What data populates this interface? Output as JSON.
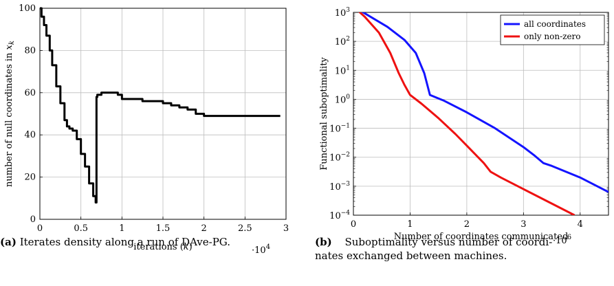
{
  "chart_data": [
    {
      "type": "line",
      "xlabel": "iterations (k)",
      "x_multiplier": "·10^4",
      "ylabel": "number of null coordinates in x_k",
      "xlim": [
        0,
        3
      ],
      "ylim": [
        0,
        100
      ],
      "xticks": [
        "0",
        "0.5",
        "1",
        "1.5",
        "2",
        "2.5",
        "3"
      ],
      "yticks": [
        "0",
        "20",
        "40",
        "60",
        "80",
        "100"
      ],
      "grid": true,
      "series": [
        {
          "color": "#000000",
          "x": [
            0,
            0.02,
            0.05,
            0.08,
            0.12,
            0.15,
            0.2,
            0.25,
            0.3,
            0.33,
            0.36,
            0.4,
            0.45,
            0.5,
            0.55,
            0.6,
            0.65,
            0.68,
            0.69,
            0.7,
            0.72,
            0.75,
            0.8,
            0.85,
            0.95,
            1.0,
            1.25,
            1.5,
            1.6,
            1.7,
            1.8,
            1.9,
            2.0,
            2.5,
            2.93
          ],
          "y": [
            100,
            96,
            92,
            87,
            80,
            73,
            63,
            55,
            47,
            44,
            43,
            42,
            38,
            31,
            25,
            17,
            11,
            8,
            58,
            59,
            59,
            60,
            60,
            60,
            59,
            57,
            56,
            55,
            54,
            53,
            52,
            50,
            49,
            49,
            49
          ]
        }
      ]
    },
    {
      "type": "line",
      "xlabel": "Number of coordinates communicated",
      "x_multiplier": "·10^6",
      "ylabel": "Functional suboptimality",
      "xlim": [
        0,
        4.5
      ],
      "ylim_log10": [
        -4,
        3
      ],
      "yscale": "log",
      "xticks": [
        "0",
        "1",
        "2",
        "3",
        "4"
      ],
      "yticks_exp": [
        "3",
        "2",
        "1",
        "0",
        "−1",
        "−2",
        "−3",
        "−4"
      ],
      "grid": true,
      "legend_position": "top-right",
      "series": [
        {
          "name": "all coordinates",
          "color": "#1414ff",
          "x": [
            0,
            0.3,
            0.6,
            0.9,
            1.1,
            1.25,
            1.35,
            1.6,
            2.0,
            2.5,
            3.0,
            3.2,
            3.35,
            3.5,
            4.0,
            4.5
          ],
          "log10_y": [
            3.2,
            2.85,
            2.5,
            2.05,
            1.6,
            0.9,
            0.15,
            -0.05,
            -0.45,
            -1.0,
            -1.65,
            -1.95,
            -2.2,
            -2.3,
            -2.7,
            -3.2
          ]
        },
        {
          "name": "only non-zero",
          "color": "#ee1111",
          "x": [
            0,
            0.2,
            0.45,
            0.65,
            0.8,
            0.9,
            1.0,
            1.2,
            1.5,
            1.8,
            2.0,
            2.3,
            2.42,
            2.6,
            3.0,
            3.5,
            3.9
          ],
          "log10_y": [
            3.2,
            2.85,
            2.3,
            1.6,
            0.9,
            0.5,
            0.15,
            -0.15,
            -0.65,
            -1.2,
            -1.6,
            -2.2,
            -2.5,
            -2.7,
            -3.1,
            -3.6,
            -4.0
          ]
        }
      ]
    }
  ],
  "captions": [
    {
      "label": "(a)",
      "text": "Iterates density along a run of DAve-PG."
    },
    {
      "label": "(b)",
      "text_line1": "Suboptimality versus number of coordi-",
      "text_line2": "nates exchanged between machines."
    }
  ]
}
